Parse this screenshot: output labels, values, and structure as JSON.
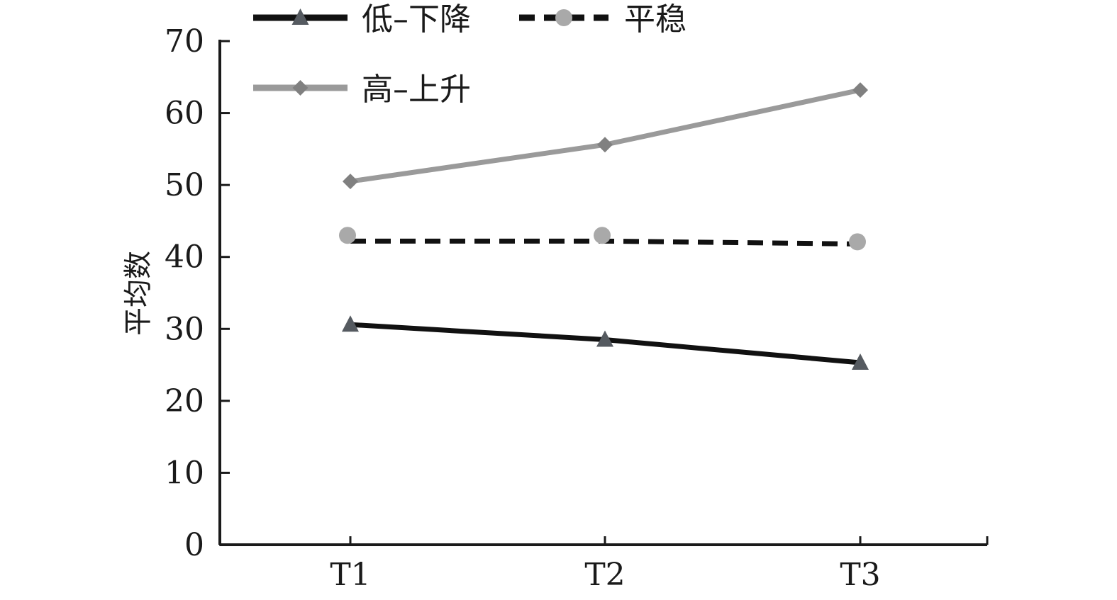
{
  "chart_data": {
    "type": "line",
    "categories": [
      "T1",
      "T2",
      "T3"
    ],
    "ylabel": "平均数",
    "ylim": [
      0,
      70
    ],
    "yticks": [
      0,
      10,
      20,
      30,
      40,
      50,
      60,
      70
    ],
    "grid": false,
    "legend_position": "top",
    "series": [
      {
        "name": "低–下降",
        "values": [
          30.6,
          28.5,
          25.3
        ],
        "color": "#111111",
        "line_style": "solid",
        "marker": "triangle",
        "marker_color": "#555a60"
      },
      {
        "name": "平稳",
        "values": [
          43.0,
          43.0,
          42.1
        ],
        "line_values": [
          42.2,
          42.2,
          41.8
        ],
        "color": "#111111",
        "line_style": "dashed",
        "marker": "circle",
        "marker_color": "#a9a9a9"
      },
      {
        "name": "高–上升",
        "values": [
          50.5,
          55.6,
          63.2
        ],
        "color": "#9a9a9a",
        "line_style": "solid",
        "marker": "diamond",
        "marker_color": "#808080"
      }
    ]
  }
}
